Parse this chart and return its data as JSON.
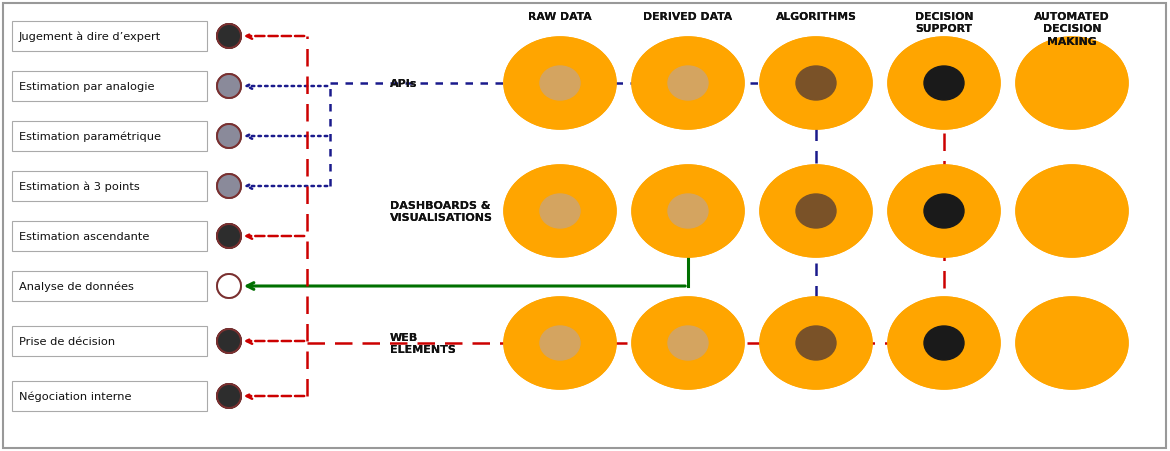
{
  "left_labels": [
    "Jugement à dire d’expert",
    "Estimation par analogie",
    "Estimation paramétrique",
    "Estimation à 3 points",
    "Estimation ascendante",
    "Analyse de données",
    "Prise de décision",
    "Négociation interne"
  ],
  "left_circle_colors": [
    "#2d2d2d",
    "#8a8a9a",
    "#8a8a9a",
    "#8a8a9a",
    "#2d2d2d",
    "#ffffff",
    "#2d2d2d",
    "#2d2d2d"
  ],
  "col_headers": [
    "RAW DATA",
    "DERIVED DATA",
    "ALGORITHMS",
    "DECISION\nSUPPORT",
    "AUTOMATED\nDECISION\nMAKING"
  ],
  "row_headers": [
    "APIs",
    "DASHBOARDS &\nVISUALISATIONS",
    "WEB\nELEMENTS"
  ],
  "orange": "#FFA500",
  "inner_colors": [
    [
      "#d4a460",
      "#d4a460",
      "#7a5228",
      "#1a1a1a",
      "#FFA500"
    ],
    [
      "#d4a460",
      "#d4a460",
      "#7a5228",
      "#1a1a1a",
      "#FFA500"
    ],
    [
      "#d4a460",
      "#d4a460",
      "#7a5228",
      "#1a1a1a",
      "#FFA500"
    ]
  ],
  "bg": "#ffffff"
}
